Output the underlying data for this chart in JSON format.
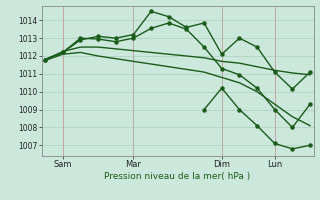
{
  "bg_color": "#cce8dc",
  "grid_color": "#aacfbf",
  "line_color": "#1a5c1a",
  "xlabel": "Pression niveau de la mer( hPa )",
  "yticks": [
    1007,
    1008,
    1009,
    1010,
    1011,
    1012,
    1013,
    1014
  ],
  "ylim": [
    1006.4,
    1014.8
  ],
  "xlim": [
    -0.2,
    15.2
  ],
  "xtick_labels": [
    "Sam",
    "Mar",
    "Dim",
    "Lun"
  ],
  "xtick_positions": [
    1,
    5,
    10,
    13
  ],
  "vline_positions": [
    1,
    5,
    10,
    13
  ],
  "vline_color": "#cc8888",
  "vline_alpha": 0.7,
  "vline_linewidth": 0.6,
  "series": [
    {
      "x": [
        0,
        1,
        2,
        3,
        4,
        5,
        6,
        7,
        8,
        9,
        10,
        11,
        12,
        13,
        14,
        15
      ],
      "y": [
        1011.8,
        1012.2,
        1012.9,
        1013.1,
        1013.0,
        1013.2,
        1014.5,
        1014.2,
        1013.6,
        1013.85,
        1012.1,
        1013.0,
        1012.5,
        1011.1,
        1010.15,
        1011.1
      ],
      "marker": "o",
      "markersize": 2.2,
      "linewidth": 1.0
    },
    {
      "x": [
        0,
        1,
        2,
        3,
        4,
        5,
        6,
        7,
        8,
        9,
        10,
        11,
        12,
        13,
        14,
        15
      ],
      "y": [
        1011.8,
        1012.25,
        1012.5,
        1012.5,
        1012.4,
        1012.3,
        1012.2,
        1012.1,
        1012.0,
        1011.9,
        1011.7,
        1011.6,
        1011.4,
        1011.2,
        1011.05,
        1010.95
      ],
      "marker": null,
      "markersize": 0,
      "linewidth": 1.0
    },
    {
      "x": [
        0,
        1,
        2,
        3,
        4,
        5,
        6,
        7,
        8,
        9,
        10,
        11,
        12,
        13,
        14,
        15
      ],
      "y": [
        1011.75,
        1012.1,
        1012.2,
        1012.0,
        1011.85,
        1011.7,
        1011.55,
        1011.4,
        1011.25,
        1011.1,
        1010.8,
        1010.5,
        1010.0,
        1009.3,
        1008.6,
        1008.1
      ],
      "marker": null,
      "markersize": 0,
      "linewidth": 1.0
    },
    {
      "x": [
        0,
        1,
        2,
        3,
        4,
        5,
        6,
        7,
        8,
        9,
        10,
        11,
        12,
        13,
        14,
        15
      ],
      "y": [
        1011.8,
        1012.2,
        1013.0,
        1012.95,
        1012.8,
        1013.0,
        1013.55,
        1013.85,
        1013.5,
        1012.5,
        1011.3,
        1010.95,
        1010.2,
        1009.0,
        1008.0,
        1009.3
      ],
      "marker": "o",
      "markersize": 2.2,
      "linewidth": 1.0
    },
    {
      "x": [
        9,
        10,
        11,
        12,
        13,
        14,
        15
      ],
      "y": [
        1009.0,
        1010.2,
        1009.0,
        1008.1,
        1007.1,
        1006.8,
        1007.0
      ],
      "marker": "o",
      "markersize": 2.2,
      "linewidth": 1.0
    }
  ]
}
